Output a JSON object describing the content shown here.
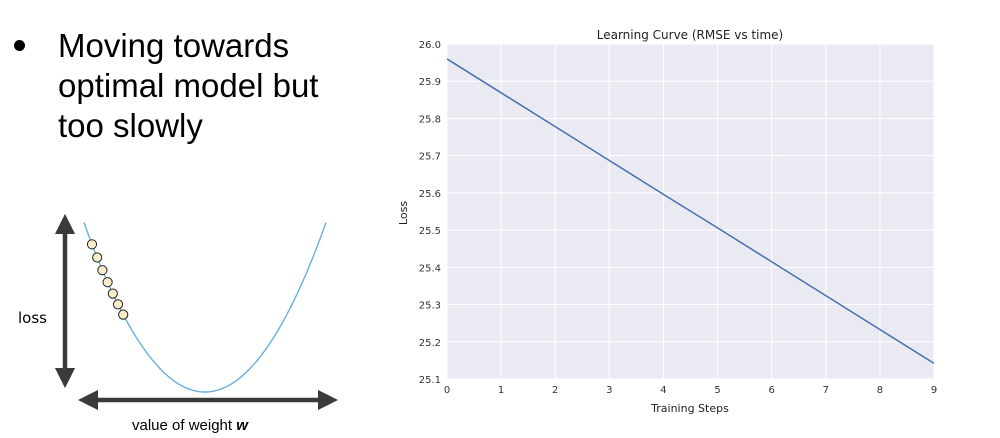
{
  "slide": {
    "bullet_lines": [
      "Moving towards",
      "optimal model but",
      "too slowly"
    ]
  },
  "diagram": {
    "y_label": "loss",
    "x_label_prefix": "value of weight ",
    "x_label_var": "w",
    "curve_color": "#6aaee0",
    "point_fill": "#f8eccb",
    "point_count": 7
  },
  "chart_data": {
    "type": "line",
    "title": "Learning Curve (RMSE vs time)",
    "xlabel": "Training Steps",
    "ylabel": "Loss",
    "x": [
      0,
      1,
      2,
      3,
      4,
      5,
      6,
      7,
      8,
      9
    ],
    "series": [
      {
        "values": [
          25.96,
          25.869,
          25.778,
          25.687,
          25.596,
          25.506,
          25.415,
          25.324,
          25.233,
          25.142
        ]
      }
    ],
    "xlim": [
      0,
      9
    ],
    "ylim": [
      25.1,
      26.0
    ],
    "xticks": [
      "0",
      "1",
      "2",
      "3",
      "4",
      "5",
      "6",
      "7",
      "8",
      "9"
    ],
    "yticks": [
      "26.0",
      "25.9",
      "25.8",
      "25.7",
      "25.6",
      "25.5",
      "25.4",
      "25.3",
      "25.2",
      "25.1"
    ],
    "grid": true,
    "background": "#eaeaf2",
    "line_color": "#4c72b0"
  }
}
